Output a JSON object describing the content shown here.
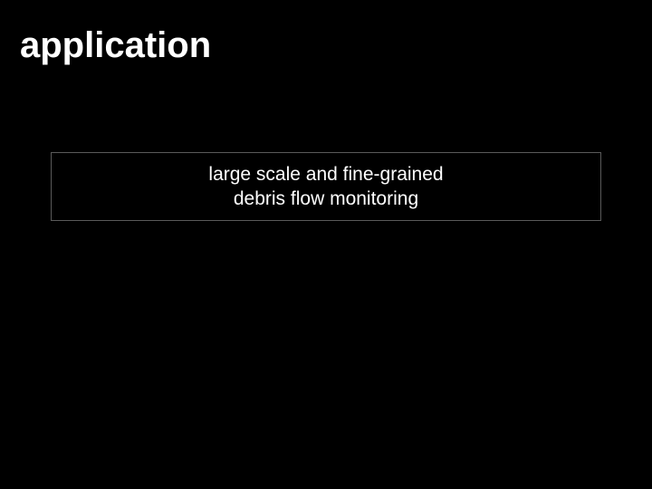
{
  "slide": {
    "title": "application",
    "background_color": "#000000",
    "title_color": "#ffffff",
    "title_fontsize": 40,
    "title_fontweight": "bold"
  },
  "content_box": {
    "line1": "large scale and fine-grained",
    "line2": "debris flow monitoring",
    "border_color": "#5a5a5a",
    "text_color": "#ffffff",
    "text_fontsize": 21,
    "background_color": "#000000"
  }
}
